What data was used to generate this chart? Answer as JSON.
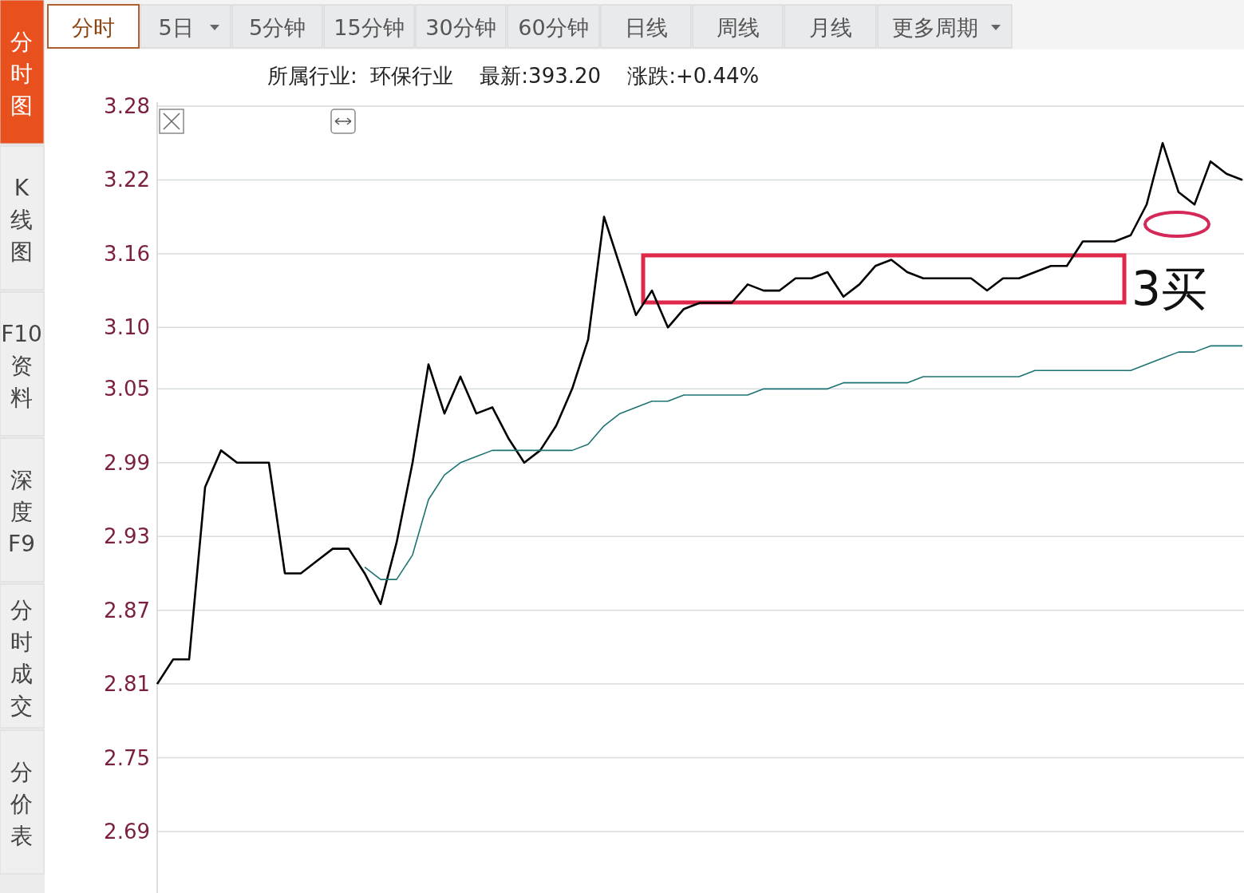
{
  "chart_data": {
    "type": "line",
    "subtitle": "所属行业:  环保行业    最新:393.20    涨跌:+0.44%",
    "categories": [
      null,
      null,
      null,
      null,
      null,
      null,
      null,
      null,
      null,
      null,
      null,
      null,
      null,
      null,
      null,
      null,
      null,
      null,
      null,
      null,
      null,
      null,
      null,
      null,
      null,
      null,
      null,
      null,
      null,
      null,
      null,
      null,
      null,
      null,
      null,
      null,
      null,
      null,
      null,
      null,
      null,
      null,
      null,
      null,
      null,
      null,
      null,
      null,
      null,
      null,
      null,
      null,
      null,
      null,
      null,
      null,
      null,
      null,
      null,
      null,
      null,
      null,
      null,
      null,
      null,
      null,
      null,
      null,
      null
    ],
    "series": [
      {
        "color": "#000000",
        "values": [
          2.81,
          2.83,
          2.83,
          2.97,
          3.0,
          2.99,
          2.99,
          2.99,
          2.9,
          2.9,
          2.91,
          2.92,
          2.92,
          2.9,
          2.875,
          2.925,
          2.99,
          3.07,
          3.03,
          3.06,
          3.03,
          3.035,
          3.01,
          2.99,
          3.0,
          3.02,
          3.05,
          3.09,
          3.19,
          3.15,
          3.11,
          3.13,
          3.1,
          3.115,
          3.12,
          3.12,
          3.12,
          3.135,
          3.13,
          3.13,
          3.14,
          3.14,
          3.145,
          3.125,
          3.135,
          3.15,
          3.155,
          3.145,
          3.14,
          3.14,
          3.14,
          3.14,
          3.13,
          3.14,
          3.14,
          3.145,
          3.15,
          3.15,
          3.17,
          3.17,
          3.17,
          3.175,
          3.2,
          3.25,
          3.21,
          3.2,
          3.235,
          3.225,
          3.22
        ]
      },
      {
        "color": "#1d7373",
        "values": [
          null,
          null,
          null,
          null,
          null,
          null,
          null,
          null,
          null,
          null,
          null,
          null,
          null,
          2.905,
          2.895,
          2.895,
          2.915,
          2.96,
          2.98,
          2.99,
          2.995,
          3.0,
          3.0,
          3.0,
          3.0,
          3.0,
          3.0,
          3.005,
          3.02,
          3.03,
          3.035,
          3.04,
          3.04,
          3.045,
          3.045,
          3.045,
          3.045,
          3.045,
          3.05,
          3.05,
          3.05,
          3.05,
          3.05,
          3.055,
          3.055,
          3.055,
          3.055,
          3.055,
          3.06,
          3.06,
          3.06,
          3.06,
          3.06,
          3.06,
          3.06,
          3.065,
          3.065,
          3.065,
          3.065,
          3.065,
          3.065,
          3.065,
          3.07,
          3.075,
          3.08,
          3.08,
          3.085,
          3.085,
          3.085
        ]
      }
    ],
    "ylim": [
      2.64,
      3.28
    ],
    "yticks": [
      3.28,
      3.22,
      3.16,
      {
        "value": 3.1,
        "label": "3.10"
      },
      3.05,
      2.99,
      2.93,
      2.87,
      2.81,
      2.75,
      2.69
    ],
    "grid": "y",
    "marker": "none",
    "line_style": "solid",
    "tick_labels": "y",
    "annotations": [
      "分时",
      "5日",
      "5分钟",
      "15分钟",
      "30分钟",
      "60分钟",
      "日线",
      "周线",
      "月线",
      "更多周期",
      "分时图",
      "K线图",
      "F10资料",
      "深度F9",
      "分时成交",
      "分价表",
      "3买"
    ]
  }
}
